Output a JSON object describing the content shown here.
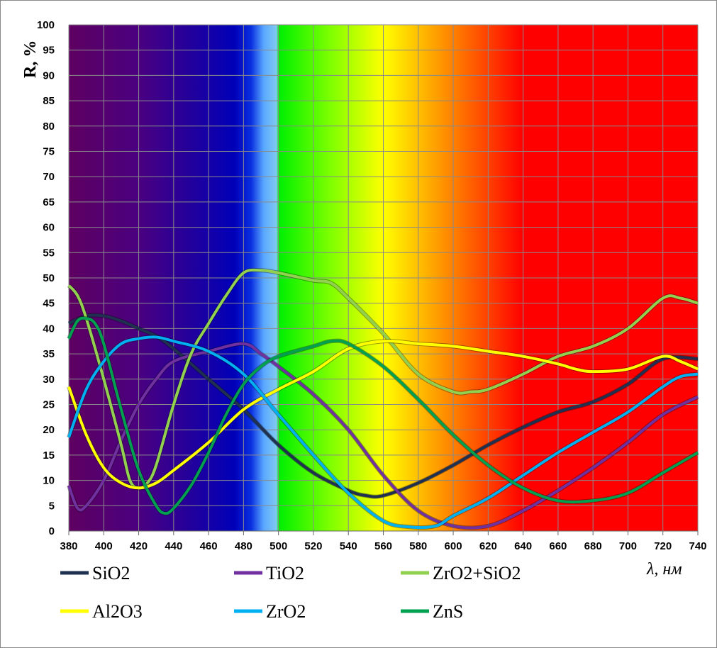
{
  "chart_data": {
    "type": "line",
    "title": "",
    "xlabel_symbol": "λ",
    "xlabel": "λ, нм",
    "ylabel": "R, %",
    "xlim": [
      380,
      740
    ],
    "ylim": [
      0,
      100
    ],
    "xticks": [
      380,
      400,
      420,
      440,
      460,
      480,
      500,
      520,
      540,
      560,
      580,
      600,
      620,
      640,
      660,
      680,
      700,
      720,
      740
    ],
    "yticks": [
      0,
      5,
      10,
      15,
      20,
      25,
      30,
      35,
      40,
      45,
      50,
      55,
      60,
      65,
      70,
      75,
      80,
      85,
      90,
      95,
      100
    ],
    "grid": true,
    "legend_position": "bottom",
    "background": "visible spectrum gradient",
    "series": [
      {
        "name": "SiO2",
        "color": "#1f3050",
        "x": [
          380,
          390,
          400,
          410,
          420,
          430,
          440,
          460,
          480,
          500,
          520,
          540,
          550,
          560,
          580,
          600,
          620,
          640,
          660,
          680,
          700,
          720,
          740
        ],
        "y": [
          41,
          42.5,
          42.5,
          41.5,
          40,
          38.5,
          36,
          30,
          24,
          17,
          11.5,
          8,
          7,
          7,
          9.5,
          13,
          17,
          20.5,
          23.5,
          25.5,
          29,
          34,
          34
        ]
      },
      {
        "name": "TiO2",
        "color": "#7030a0",
        "x": [
          380,
          385,
          390,
          400,
          410,
          420,
          430,
          440,
          460,
          480,
          490,
          500,
          520,
          540,
          560,
          580,
          600,
          620,
          640,
          660,
          680,
          700,
          720,
          740
        ],
        "y": [
          9,
          4.5,
          5,
          10,
          18,
          25,
          30,
          33.5,
          35.5,
          37,
          35,
          32.5,
          27,
          20,
          11,
          4,
          1,
          1,
          4,
          8,
          12.5,
          17.5,
          23,
          26.5
        ]
      },
      {
        "name": "ZrO2+SiO2",
        "color": "#92d050",
        "x": [
          380,
          385,
          390,
          400,
          410,
          415,
          420,
          425,
          430,
          440,
          450,
          460,
          470,
          480,
          490,
          500,
          520,
          530,
          540,
          560,
          580,
          600,
          610,
          620,
          640,
          660,
          680,
          700,
          720,
          730,
          740
        ],
        "y": [
          48.5,
          46.5,
          42,
          30,
          17,
          10,
          8.5,
          9.5,
          13,
          25,
          35,
          41,
          46.5,
          51,
          51.5,
          51,
          49.5,
          49,
          46,
          39,
          31,
          27.5,
          27.5,
          28,
          31,
          34.5,
          36.5,
          40,
          46,
          46,
          45
        ]
      },
      {
        "name": "Al2O3",
        "color": "#ffff00",
        "x": [
          380,
          390,
          400,
          410,
          420,
          430,
          440,
          460,
          480,
          500,
          520,
          540,
          560,
          580,
          600,
          620,
          640,
          660,
          670,
          680,
          700,
          720,
          730,
          740
        ],
        "y": [
          28.5,
          19,
          12.5,
          9.5,
          8.5,
          9.5,
          12,
          17.5,
          24,
          28,
          31.5,
          36,
          37.5,
          37,
          36.5,
          35.5,
          34.5,
          33,
          32,
          31.5,
          32,
          34.5,
          33.5,
          32
        ]
      },
      {
        "name": "ZrO2",
        "color": "#00b0f0",
        "x": [
          380,
          390,
          400,
          410,
          420,
          430,
          440,
          460,
          480,
          500,
          520,
          540,
          560,
          575,
          590,
          600,
          620,
          640,
          660,
          680,
          700,
          720,
          730,
          740
        ],
        "y": [
          18.5,
          28,
          33.5,
          37,
          38,
          38.3,
          37.5,
          35.5,
          31,
          23,
          15,
          7.5,
          2,
          0.8,
          1,
          3,
          6.5,
          11,
          15.5,
          19.5,
          23.5,
          28.5,
          30.5,
          31
        ]
      },
      {
        "name": "ZnS",
        "color": "#00a050",
        "x": [
          380,
          385,
          390,
          395,
          400,
          410,
          420,
          430,
          435,
          440,
          450,
          460,
          470,
          480,
          490,
          500,
          520,
          530,
          540,
          560,
          580,
          600,
          620,
          640,
          660,
          680,
          700,
          720,
          740
        ],
        "y": [
          38,
          41.5,
          42,
          41,
          37,
          24,
          12,
          5,
          3.5,
          4.5,
          9,
          15.5,
          23,
          29,
          32.5,
          34.5,
          36.5,
          37.5,
          37,
          32.5,
          26,
          19,
          13,
          8.5,
          6,
          6,
          7.5,
          11.5,
          15.5
        ]
      }
    ]
  }
}
